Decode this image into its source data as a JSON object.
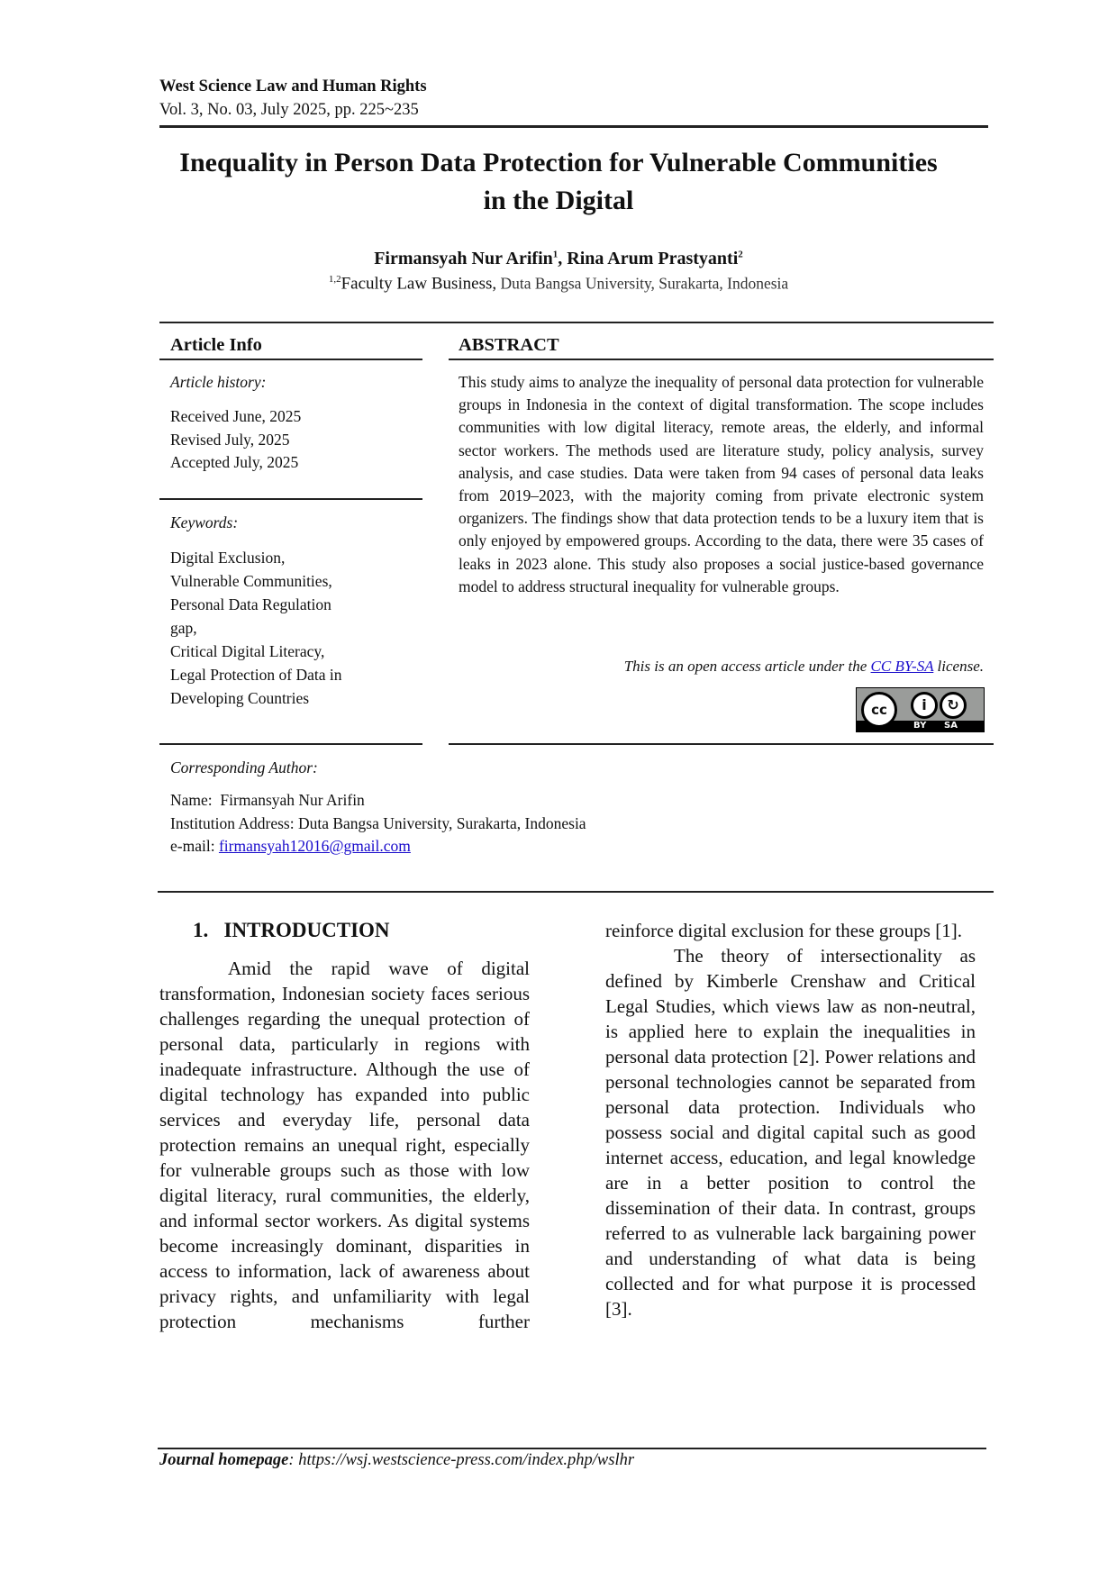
{
  "header": {
    "journal": "West Science Law and Human Rights",
    "issue": "Vol. 3, No. 03, July 2025, pp. 225~235"
  },
  "title": {
    "line1": "Inequality in Person Data Protection for Vulnerable Communities",
    "line2": "in the Digital"
  },
  "authors": {
    "author1": "Firmansyah Nur Arifin",
    "author1_sup": "1",
    "separator": ", ",
    "author2": "Rina Arum Prastyanti",
    "author2_sup": "2",
    "affil_sup": "1,2",
    "affil_main": "Faculty Law Business,",
    "affil_rest": " Duta Bangsa University, Surakarta, Indonesia"
  },
  "article_info": {
    "heading": "Article Info",
    "history_label": "Article history:",
    "received": "Received June, 2025",
    "revised": "Revised July, 2025",
    "accepted": "Accepted July, 2025",
    "keywords_label": "Keywords:",
    "keywords": [
      "Digital Exclusion,",
      "Vulnerable Communities,",
      "Personal Data Regulation",
      "gap,",
      "Critical Digital Literacy,",
      "Legal Protection of Data in",
      "Developing Countries"
    ]
  },
  "abstract": {
    "heading": "ABSTRACT",
    "text": "This study aims to analyze the inequality of personal data protection for vulnerable groups in Indonesia in the context of digital transformation. The scope includes communities with low digital literacy, remote areas, the elderly, and informal sector workers. The methods used are literature study, policy analysis, survey analysis, and case studies. Data were taken from 94 cases of personal data leaks from 2019–2023, with the majority coming from private electronic system organizers. The findings show that data protection tends to be a luxury item that is only enjoyed by empowered groups. According to the data, there were 35 cases of leaks in 2023 alone. This study also proposes a social justice-based governance model to address structural inequality for vulnerable groups.",
    "license_prefix": "This is an open access article under the ",
    "license_link": "CC BY-SA",
    "license_suffix": " license.",
    "badge": {
      "cc": "cc",
      "by": "BY",
      "sa": "SA"
    }
  },
  "corresponding": {
    "label": "Corresponding Author:",
    "name_label": "Name:",
    "name": "Firmansyah Nur Arifin",
    "institution_label": "Institution Address:",
    "institution": "Duta Bangsa University, Surakarta, Indonesia",
    "email_label": "e-mail:",
    "email": "firmansyah12016@gmail.com"
  },
  "introduction": {
    "number": "1.",
    "heading": "INTRODUCTION",
    "para1": "Amid the rapid wave of digital transformation, Indonesian society faces serious challenges regarding the unequal protection of personal data, particularly in regions with inadequate infrastructure. Although the use of digital technology has expanded into public services and everyday life, personal data protection remains an unequal right, especially for vulnerable groups such as those with low digital literacy, rural communities, the elderly, and informal sector workers. As digital systems become increasingly dominant, disparities in access to information, lack of awareness about privacy rights, and unfamiliarity with legal protection mechanisms further",
    "para1_cont": "reinforce digital exclusion for these groups [1].",
    "para2": "The theory of intersectionality as defined by Kimberle Crenshaw and Critical Legal Studies, which views law as non-neutral, is applied here to explain the inequalities in personal data protection [2]. Power relations and personal technologies cannot be separated from personal data protection. Individuals who possess social and digital capital such as good internet access, education, and legal knowledge are in a better position to control the dissemination of their data. In contrast, groups referred to as vulnerable lack bargaining power and understanding of what data is being collected and for what purpose it is processed [3]."
  },
  "footer": {
    "label": "Journal homepage",
    "url": ": https://wsj.westscience-press.com/index.php/wslhr"
  },
  "colors": {
    "link": "#1a0dcc",
    "rule": "#222222"
  }
}
